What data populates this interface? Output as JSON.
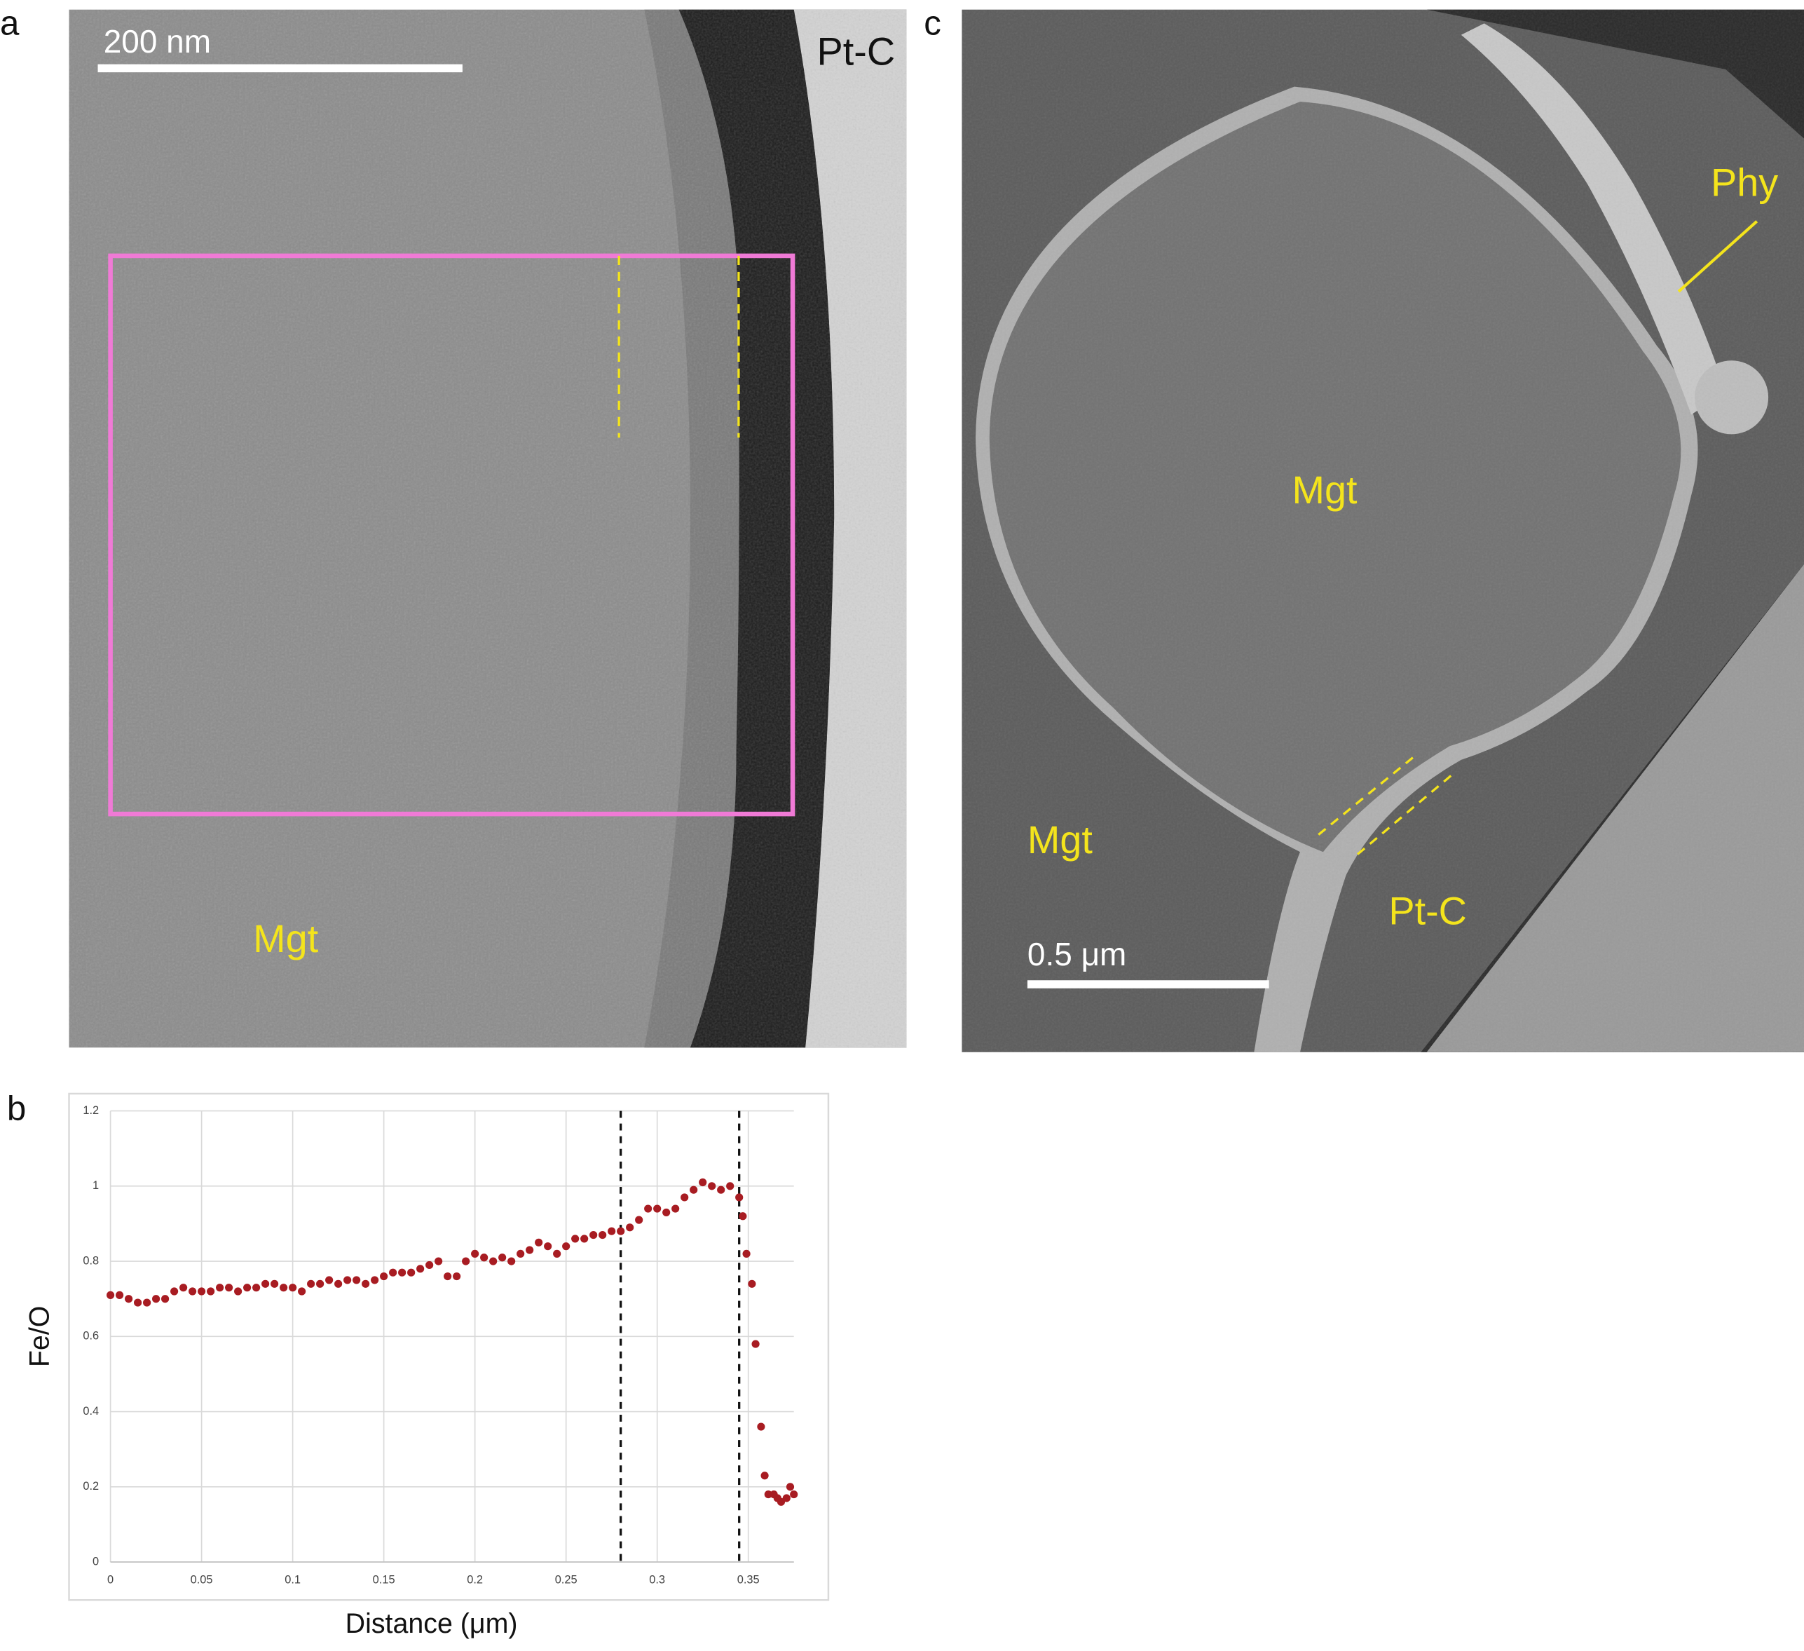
{
  "panels": {
    "a": {
      "label": "a",
      "scale_bar": "200 nm",
      "labels": [
        "Pt-C",
        "Mgt"
      ]
    },
    "b": {
      "label": "b"
    },
    "c": {
      "label": "c",
      "scale_bar": "0.5 μm",
      "labels": [
        "Phy",
        "Mgt",
        "Mgt",
        "Pt-C"
      ]
    }
  },
  "chart_data": {
    "type": "scatter",
    "xlabel": "Distance (μm)",
    "ylabel": "Fe/O",
    "color": "#a81c22",
    "x": [
      0,
      0.005,
      0.01,
      0.015,
      0.02,
      0.025,
      0.03,
      0.035,
      0.04,
      0.045,
      0.05,
      0.055,
      0.06,
      0.065,
      0.07,
      0.075,
      0.08,
      0.085,
      0.09,
      0.095,
      0.1,
      0.105,
      0.11,
      0.115,
      0.12,
      0.125,
      0.13,
      0.135,
      0.14,
      0.145,
      0.15,
      0.155,
      0.16,
      0.165,
      0.17,
      0.175,
      0.18,
      0.185,
      0.19,
      0.195,
      0.2,
      0.205,
      0.21,
      0.215,
      0.22,
      0.225,
      0.23,
      0.235,
      0.24,
      0.245,
      0.25,
      0.255,
      0.26,
      0.265,
      0.27,
      0.275,
      0.28,
      0.285,
      0.29,
      0.295,
      0.3,
      0.305,
      0.31,
      0.315,
      0.32,
      0.325,
      0.33,
      0.335,
      0.34,
      0.345,
      0.347,
      0.349,
      0.352,
      0.354,
      0.357,
      0.359,
      0.361,
      0.364,
      0.366,
      0.368,
      0.371,
      0.373,
      0.375
    ],
    "values": [
      0.71,
      0.71,
      0.7,
      0.69,
      0.69,
      0.7,
      0.7,
      0.72,
      0.73,
      0.72,
      0.72,
      0.72,
      0.73,
      0.73,
      0.72,
      0.73,
      0.73,
      0.74,
      0.74,
      0.73,
      0.73,
      0.72,
      0.74,
      0.74,
      0.75,
      0.74,
      0.75,
      0.75,
      0.74,
      0.75,
      0.76,
      0.77,
      0.77,
      0.77,
      0.78,
      0.79,
      0.8,
      0.76,
      0.76,
      0.8,
      0.82,
      0.81,
      0.8,
      0.81,
      0.8,
      0.82,
      0.83,
      0.85,
      0.84,
      0.82,
      0.84,
      0.86,
      0.86,
      0.87,
      0.87,
      0.88,
      0.88,
      0.89,
      0.91,
      0.94,
      0.94,
      0.93,
      0.94,
      0.97,
      0.99,
      1.01,
      1.0,
      0.99,
      1.0,
      0.97,
      0.92,
      0.82,
      0.74,
      0.58,
      0.36,
      0.23,
      0.18,
      0.18,
      0.17,
      0.16,
      0.17,
      0.2,
      0.18
    ],
    "xlim": [
      0,
      0.375
    ],
    "ylim": [
      0,
      1.2
    ],
    "xticks": [
      0,
      0.05,
      0.1,
      0.15,
      0.2,
      0.25,
      0.3,
      0.35
    ],
    "yticks": [
      0,
      0.2,
      0.4,
      0.6,
      0.8,
      1,
      1.2
    ],
    "vlines": [
      0.28,
      0.345
    ],
    "grid": true
  }
}
